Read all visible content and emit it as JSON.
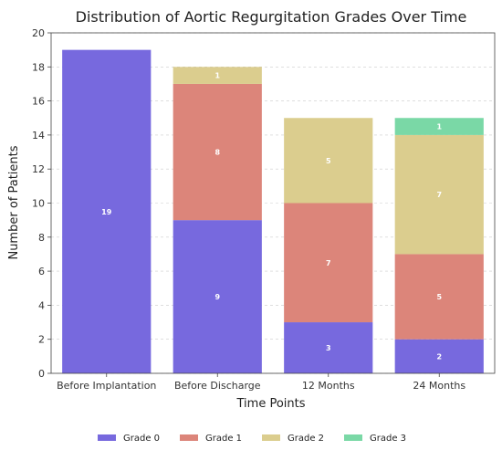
{
  "chart_data": {
    "type": "bar",
    "stacked": true,
    "title": "Distribution of Aortic Regurgitation Grades Over Time",
    "xlabel": "Time Points",
    "ylabel": "Number of Patients",
    "ylim": [
      0,
      20
    ],
    "yticks": [
      0,
      2,
      4,
      6,
      8,
      10,
      12,
      14,
      16,
      18,
      20
    ],
    "grid": true,
    "legend_placement": "bottom-center",
    "categories": [
      "Before Implantation",
      "Before Discharge",
      "12 Months",
      "24 Months"
    ],
    "series": [
      {
        "name": "Grade 0",
        "color": "#7769de",
        "values": [
          19,
          9,
          3,
          2
        ]
      },
      {
        "name": "Grade 1",
        "color": "#dc857a",
        "values": [
          0,
          8,
          7,
          5
        ]
      },
      {
        "name": "Grade 2",
        "color": "#dbcd8e",
        "values": [
          0,
          1,
          5,
          7
        ]
      },
      {
        "name": "Grade 3",
        "color": "#7ad8a6",
        "values": [
          0,
          0,
          0,
          1
        ]
      }
    ]
  }
}
